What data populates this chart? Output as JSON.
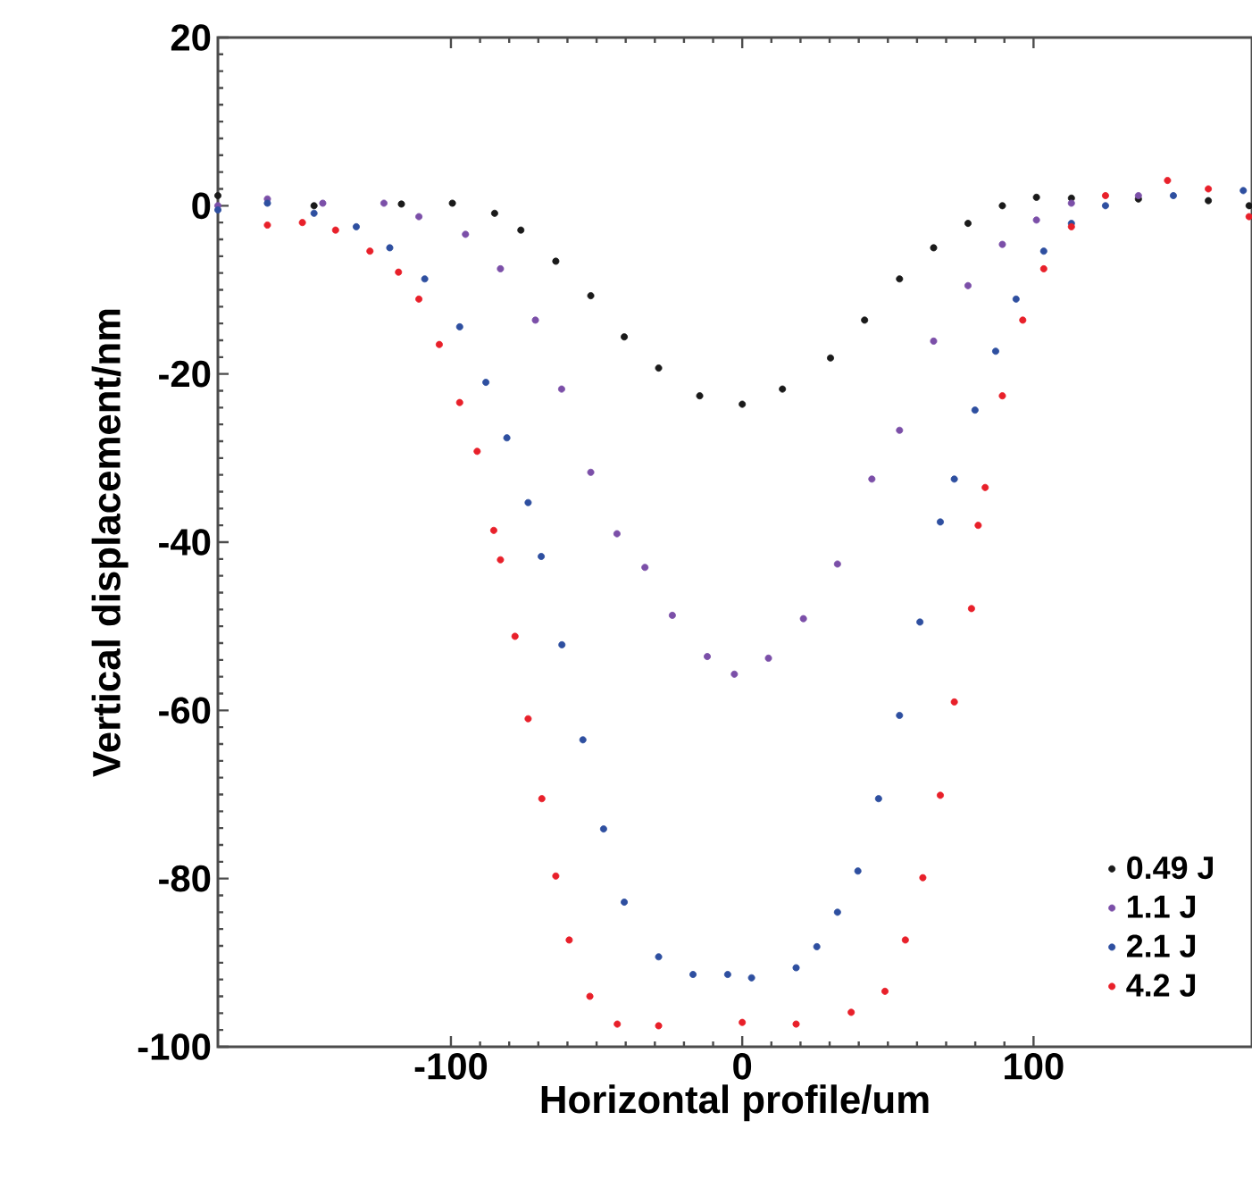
{
  "chart_data": {
    "type": "scatter",
    "xlabel": "Horizontal profile/um",
    "ylabel": "Vertical displacement/nm",
    "xlim": [
      -180,
      175
    ],
    "ylim": [
      -100,
      20
    ],
    "xticks": [
      -100,
      0,
      100
    ],
    "yticks": [
      -100,
      -80,
      -60,
      -40,
      -20,
      0,
      20
    ],
    "grid": false,
    "legend": "bottom right",
    "marker": "circle",
    "series": [
      {
        "name": "0.49 J",
        "color": "#1a1a1a",
        "x": [
          -180,
          -147,
          -117,
          -99.5,
          -85,
          -76,
          -64,
          -52,
          -40.5,
          -28.7,
          -14.6,
          0,
          13.8,
          30.3,
          42,
          54,
          65.7,
          77.5,
          89.3,
          101,
          113,
          136,
          160,
          174
        ],
        "values": [
          1.2,
          0,
          0.2,
          0.3,
          -0.9,
          -2.9,
          -6.6,
          -10.7,
          -15.6,
          -19.3,
          -22.6,
          -23.6,
          -21.8,
          -18.1,
          -13.6,
          -8.7,
          -5.0,
          -2.1,
          0,
          1.0,
          0.9,
          0.8,
          0.6,
          0
        ]
      },
      {
        "name": "1.1 J",
        "color": "#7b4fa8",
        "x": [
          -180,
          -163,
          -144,
          -123,
          -111,
          -95,
          -83,
          -71,
          -62,
          -52,
          -43,
          -33.4,
          -24,
          -12,
          -2.7,
          9,
          21,
          32.7,
          44.5,
          54,
          65.7,
          77.5,
          89.3,
          101,
          113,
          136
        ],
        "values": [
          0,
          0.8,
          0.3,
          0.3,
          -1.3,
          -3.4,
          -7.5,
          -13.6,
          -21.8,
          -31.7,
          -39,
          -43,
          -48.7,
          -53.6,
          -55.7,
          -53.8,
          -49.1,
          -42.6,
          -32.5,
          -26.7,
          -16.1,
          -9.5,
          -4.6,
          -1.7,
          0.3,
          1.2
        ]
      },
      {
        "name": "2.1 J",
        "color": "#2e4fa0",
        "x": [
          -180,
          -163,
          -147,
          -132.5,
          -121,
          -109,
          -97,
          -88,
          -80.8,
          -73.5,
          -69,
          -61.9,
          -54.7,
          -47.6,
          -40.5,
          -28.7,
          -16.9,
          -5,
          3.2,
          18.5,
          25.6,
          32.7,
          39.7,
          46.8,
          54,
          61,
          68,
          72.8,
          79.9,
          87,
          94,
          103.5,
          113,
          124.7,
          148,
          172
        ],
        "values": [
          -0.5,
          0.3,
          -0.9,
          -2.5,
          -5,
          -8.7,
          -14.4,
          -21,
          -27.6,
          -35.3,
          -41.7,
          -52.2,
          -63.5,
          -74.1,
          -82.8,
          -89.3,
          -91.4,
          -91.4,
          -91.8,
          -90.6,
          -88.1,
          -84,
          -79.1,
          -70.5,
          -60.6,
          -49.5,
          -37.6,
          -32.5,
          -24.3,
          -17.3,
          -11.1,
          -5.4,
          -2.1,
          0,
          1.2,
          1.8
        ]
      },
      {
        "name": "4.2 J",
        "color": "#e8202a",
        "x": [
          -163,
          -151,
          -139.6,
          -127.8,
          -118,
          -111,
          -104,
          -97,
          -91,
          -85.3,
          -83,
          -78,
          -73.5,
          -68.8,
          -64,
          -59.4,
          -52.3,
          -42.9,
          -28.7,
          0,
          18.5,
          37.4,
          49,
          56,
          62,
          68,
          72.8,
          78.7,
          81,
          83.4,
          89.3,
          96.3,
          103.5,
          113,
          124.7,
          146,
          160,
          174
        ],
        "values": [
          -2.3,
          -2.0,
          -2.9,
          -5.4,
          -7.9,
          -11.1,
          -16.5,
          -23.4,
          -29.2,
          -38.6,
          -42.1,
          -51.2,
          -61,
          -70.5,
          -79.7,
          -87.3,
          -94,
          -97.3,
          -97.5,
          -97.1,
          -97.3,
          -95.9,
          -93.4,
          -87.3,
          -79.9,
          -70.1,
          -59,
          -47.9,
          -38,
          -33.5,
          -22.6,
          -13.6,
          -7.5,
          -2.5,
          1.2,
          3,
          2,
          -1.3
        ]
      }
    ]
  }
}
